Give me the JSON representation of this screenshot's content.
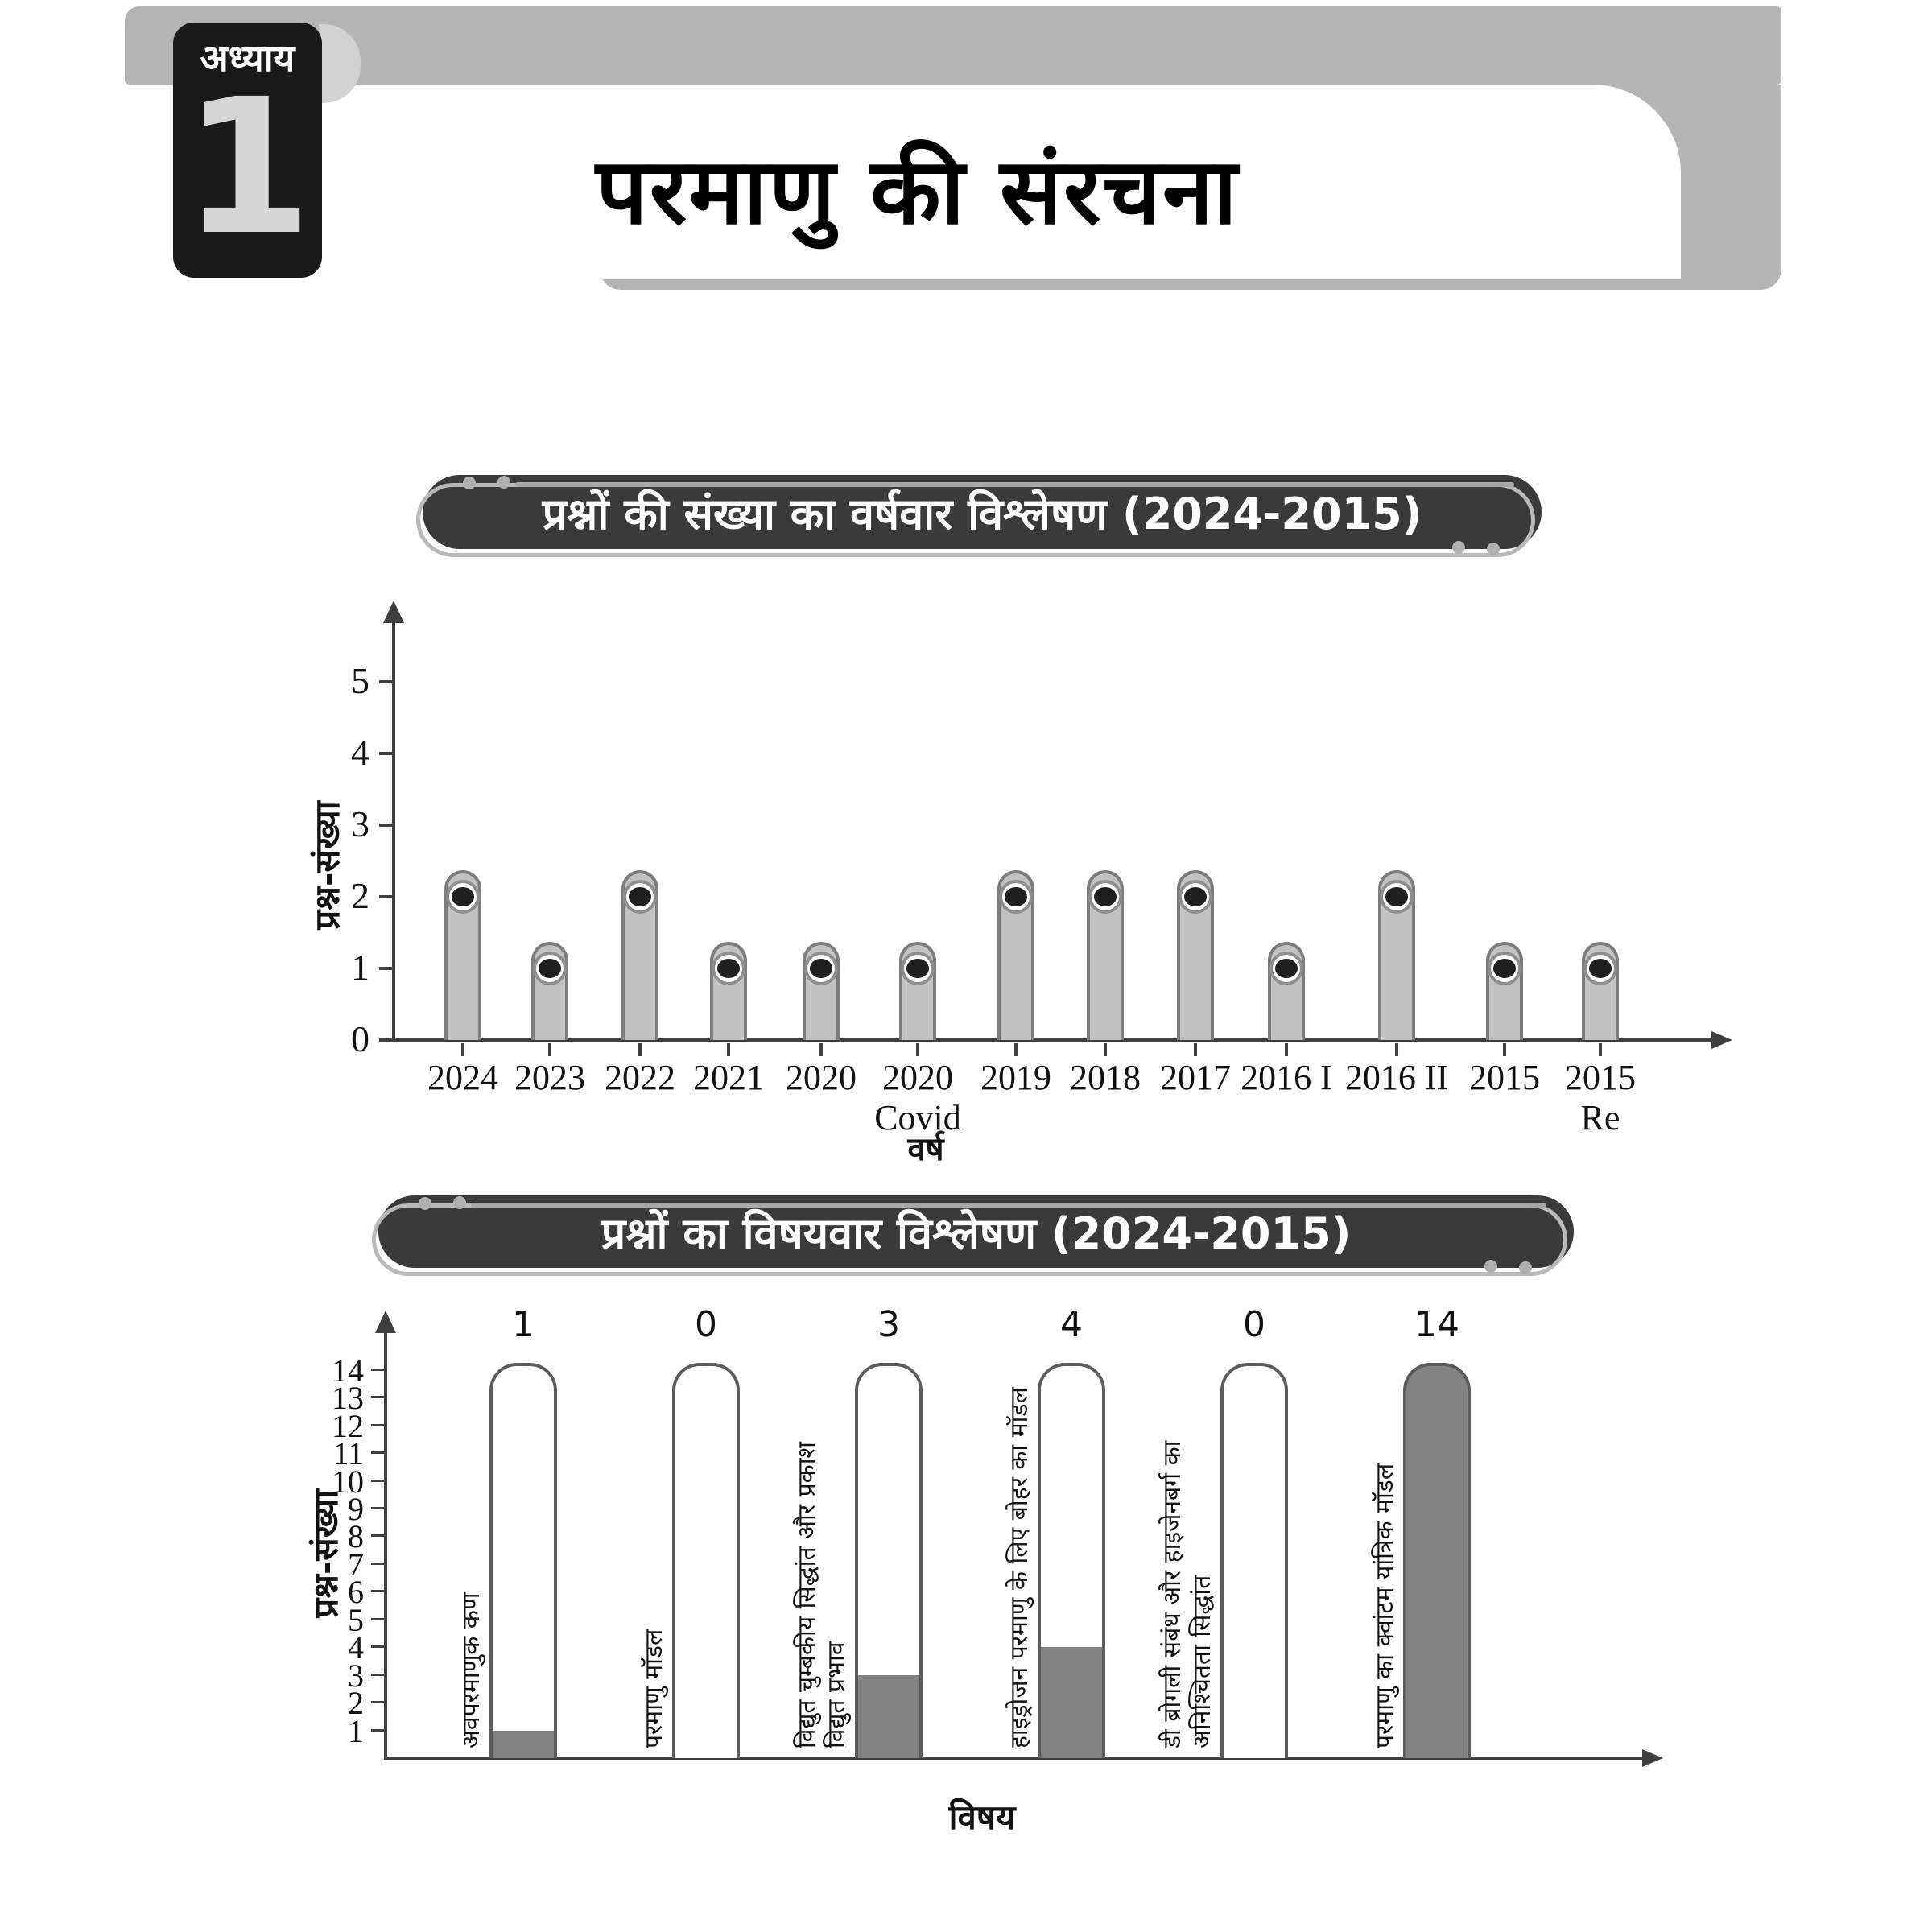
{
  "header": {
    "chapter_label": "अध्याय",
    "chapter_number": "1",
    "title": "परमाणु की संरचना"
  },
  "banners": {
    "yearwise": "प्रश्नों की संख्या का वर्षवार विश्लेषण (2024-2015)",
    "topicwise": "प्रश्नों का विषयवार विश्लेषण (2024-2015)"
  },
  "chart_data": [
    {
      "type": "bar",
      "variant": "lollipop-bar",
      "title": "प्रश्नों की संख्या का वर्षवार विश्लेषण (2024-2015)",
      "xlabel": "वर्ष",
      "ylabel": "प्रश्न-संख्या",
      "ylim": [
        0,
        5
      ],
      "yticks": [
        0,
        1,
        2,
        3,
        4,
        5
      ],
      "grid": false,
      "legend": false,
      "categories": [
        "2024",
        "2023",
        "2022",
        "2021",
        "2020",
        "2020 Covid",
        "2019",
        "2018",
        "2017",
        "2016 I",
        "2016 II",
        "2015",
        "2015 Re"
      ],
      "category_lines": [
        [
          "2024"
        ],
        [
          "2023"
        ],
        [
          "2022"
        ],
        [
          "2021"
        ],
        [
          "2020"
        ],
        [
          "2020",
          "Covid"
        ],
        [
          "2019"
        ],
        [
          "2018"
        ],
        [
          "2017"
        ],
        [
          "2016 I"
        ],
        [
          "2016 II"
        ],
        [
          "2015"
        ],
        [
          "2015",
          "Re"
        ]
      ],
      "values": [
        2,
        1,
        2,
        1,
        1,
        1,
        2,
        2,
        2,
        1,
        2,
        1,
        1
      ]
    },
    {
      "type": "bar",
      "variant": "thermometer-bar",
      "title": "प्रश्नों का विषयवार विश्लेषण (2024-2015)",
      "xlabel": "विषय",
      "ylabel": "प्रश्न-संख्या",
      "ylim": [
        0,
        14.5
      ],
      "yticks": [
        1,
        2,
        3,
        4,
        5,
        6,
        7,
        8,
        9,
        10,
        11,
        12,
        13,
        14
      ],
      "grid": false,
      "legend": false,
      "categories": [
        "अवपरमाणुक कण",
        "परमाणु मॉडल",
        "विद्युत चुम्बकीय सिद्धांत और प्रकाश विद्युत प्रभाव",
        "हाइड्रोजन परमाणु के लिए बोहर का मॉडल",
        "डी ब्रोगली संबंध और हाइजेनबर्ग का अनिश्चितता सिद्धांत",
        "परमाणु का क्वांटम यांत्रिक मॉडल"
      ],
      "category_lines": [
        [
          "अवपरमाणुक कण"
        ],
        [
          "परमाणु मॉडल"
        ],
        [
          "विद्युत चुम्बकीय सिद्धांत और प्रकाश",
          "विद्युत प्रभाव"
        ],
        [
          "हाइड्रोजन परमाणु के लिए बोहर का मॉडल"
        ],
        [
          "डी ब्रोगली संबंध और हाइजेनबर्ग का",
          "अनिश्चितता सिद्धांत"
        ],
        [
          "परमाणु का क्वांटम यांत्रिक मॉडल"
        ]
      ],
      "values": [
        1,
        0,
        3,
        4,
        0,
        14
      ],
      "value_labels": [
        "1",
        "0",
        "3",
        "4",
        "0",
        "14"
      ]
    }
  ],
  "colors": {
    "band": "#b5b5b5",
    "tab_bg": "#191919",
    "tab_number": "#d6d6d6",
    "banner_bg": "#3a3a3a",
    "banner_text": "#ffffff",
    "banner_accent": "#b0b0b0",
    "axis": "#3f3f3f",
    "bar_fill": "#c2c2c2",
    "bar_border": "#7d7d7d",
    "marker_ring": "#8e8e8e",
    "marker_core": "#1f1f1f",
    "tube_border": "#5c5c5c",
    "tube_fill": "#838383",
    "text": "#111111"
  }
}
